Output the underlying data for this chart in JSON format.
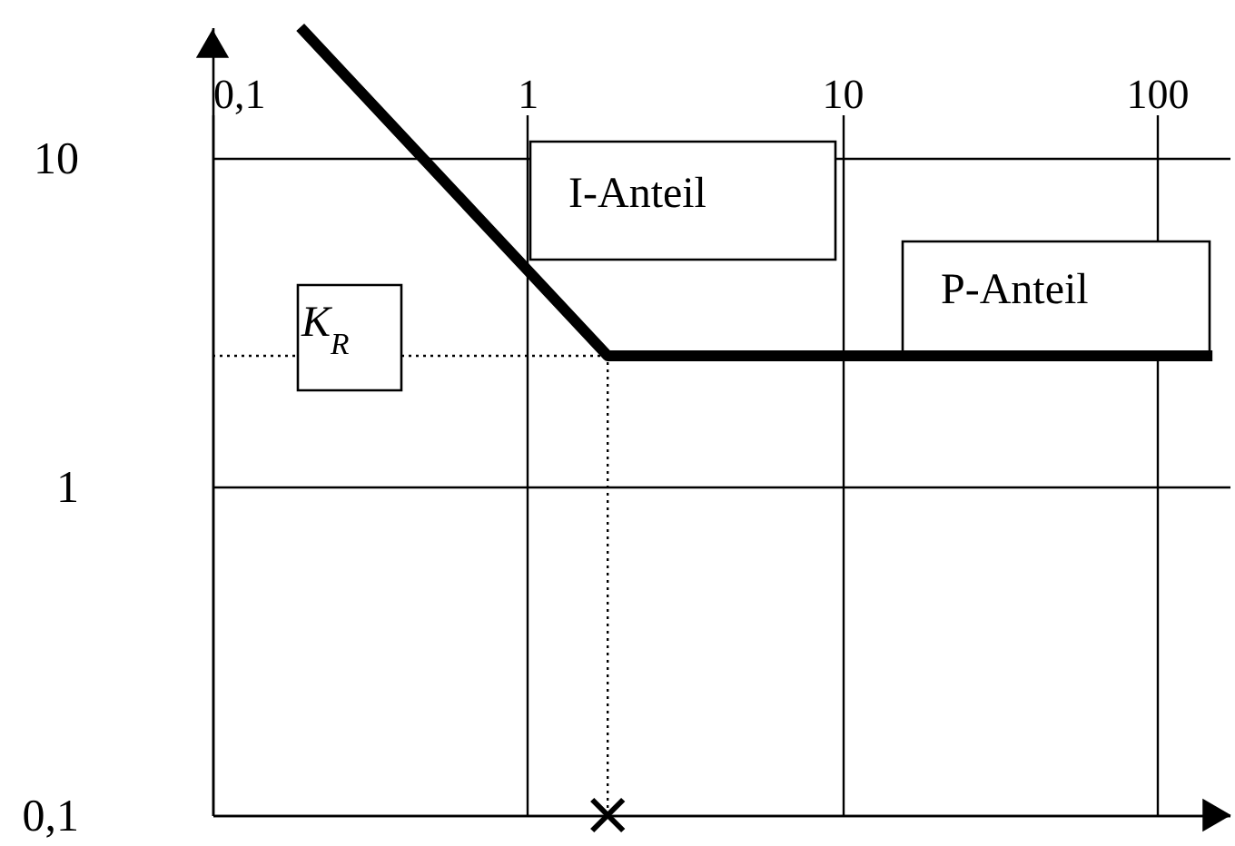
{
  "chart_data": {
    "type": "line",
    "log": "xy",
    "xlim": [
      0.1,
      170
    ],
    "ylim": [
      0.1,
      25
    ],
    "xticks": [
      {
        "value": 0.1,
        "label": "0,1"
      },
      1,
      10,
      100
    ],
    "yticks": [
      {
        "value": 0.1,
        "label": "0,1"
      },
      1,
      10
    ],
    "grid": true,
    "series": [
      {
        "x": [
          0.19,
          1.8,
          150
        ],
        "values": [
          25,
          2.5,
          2.5
        ],
        "color": "#000000"
      },
      {
        "type": "scatter",
        "x": [
          1.8
        ],
        "values": [
          0.1
        ],
        "color": "#000000",
        "marker": "cross"
      }
    ],
    "ref_lines": [
      {
        "axis": "y",
        "value": 2.5,
        "label": "K$_{R}$",
        "line_style": "dotted"
      },
      {
        "axis": "x",
        "value": 1.8,
        "line_style": "dotted"
      }
    ],
    "annotations": [
      "I-Anteil",
      "P-Anteil"
    ]
  }
}
